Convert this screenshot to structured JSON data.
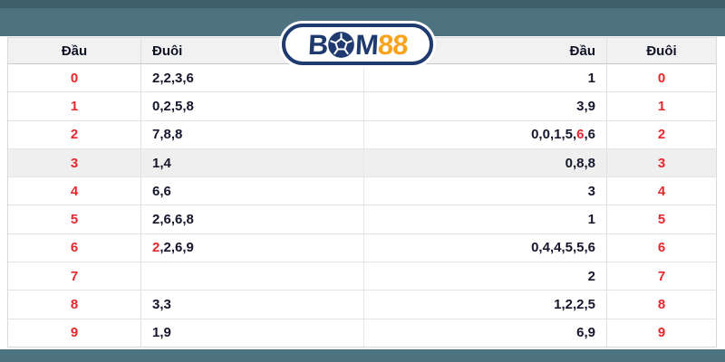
{
  "colors": {
    "banner_teal": "#4e7380",
    "banner_teal_dark": "#3f5f6b",
    "header_bg": "#f1f1f1",
    "highlight_row_bg": "#efefef",
    "digit_red": "#e6282d",
    "text_dark": "#16162d",
    "logo_navy": "#1e3a6e",
    "logo_orange": "#f9a21d"
  },
  "logo": {
    "b": "B",
    "ball_icon": "soccer-ball-icon",
    "m": "M",
    "num": "88"
  },
  "table": {
    "headers": [
      "Đầu",
      "Đuôi",
      "Đầu",
      "Đuôi"
    ],
    "rows": [
      {
        "left_dau": "0",
        "left_duoi": [
          {
            "t": "2,2,3,6"
          }
        ],
        "right_dau": [
          {
            "t": "1"
          }
        ],
        "right_duoi": "0",
        "highlight": false
      },
      {
        "left_dau": "1",
        "left_duoi": [
          {
            "t": "0,2,5,8"
          }
        ],
        "right_dau": [
          {
            "t": "3,9"
          }
        ],
        "right_duoi": "1",
        "highlight": false
      },
      {
        "left_dau": "2",
        "left_duoi": [
          {
            "t": "7,8,8"
          }
        ],
        "right_dau": [
          {
            "t": "0,0,1,5,"
          },
          {
            "t": "6",
            "red": true
          },
          {
            "t": ",6"
          }
        ],
        "right_duoi": "2",
        "highlight": false
      },
      {
        "left_dau": "3",
        "left_duoi": [
          {
            "t": "1,4"
          }
        ],
        "right_dau": [
          {
            "t": "0,8,8"
          }
        ],
        "right_duoi": "3",
        "highlight": true
      },
      {
        "left_dau": "4",
        "left_duoi": [
          {
            "t": "6,6"
          }
        ],
        "right_dau": [
          {
            "t": "3"
          }
        ],
        "right_duoi": "4",
        "highlight": false
      },
      {
        "left_dau": "5",
        "left_duoi": [
          {
            "t": "2,6,6,8"
          }
        ],
        "right_dau": [
          {
            "t": "1"
          }
        ],
        "right_duoi": "5",
        "highlight": false
      },
      {
        "left_dau": "6",
        "left_duoi": [
          {
            "t": "2",
            "red": true
          },
          {
            "t": ",2,6,9"
          }
        ],
        "right_dau": [
          {
            "t": "0,4,4,5,5,6"
          }
        ],
        "right_duoi": "6",
        "highlight": false
      },
      {
        "left_dau": "7",
        "left_duoi": [],
        "right_dau": [
          {
            "t": "2"
          }
        ],
        "right_duoi": "7",
        "highlight": false
      },
      {
        "left_dau": "8",
        "left_duoi": [
          {
            "t": "3,3"
          }
        ],
        "right_dau": [
          {
            "t": "1,2,2,5"
          }
        ],
        "right_duoi": "8",
        "highlight": false
      },
      {
        "left_dau": "9",
        "left_duoi": [
          {
            "t": "1,9"
          }
        ],
        "right_dau": [
          {
            "t": "6,9"
          }
        ],
        "right_duoi": "9",
        "highlight": false
      }
    ]
  }
}
